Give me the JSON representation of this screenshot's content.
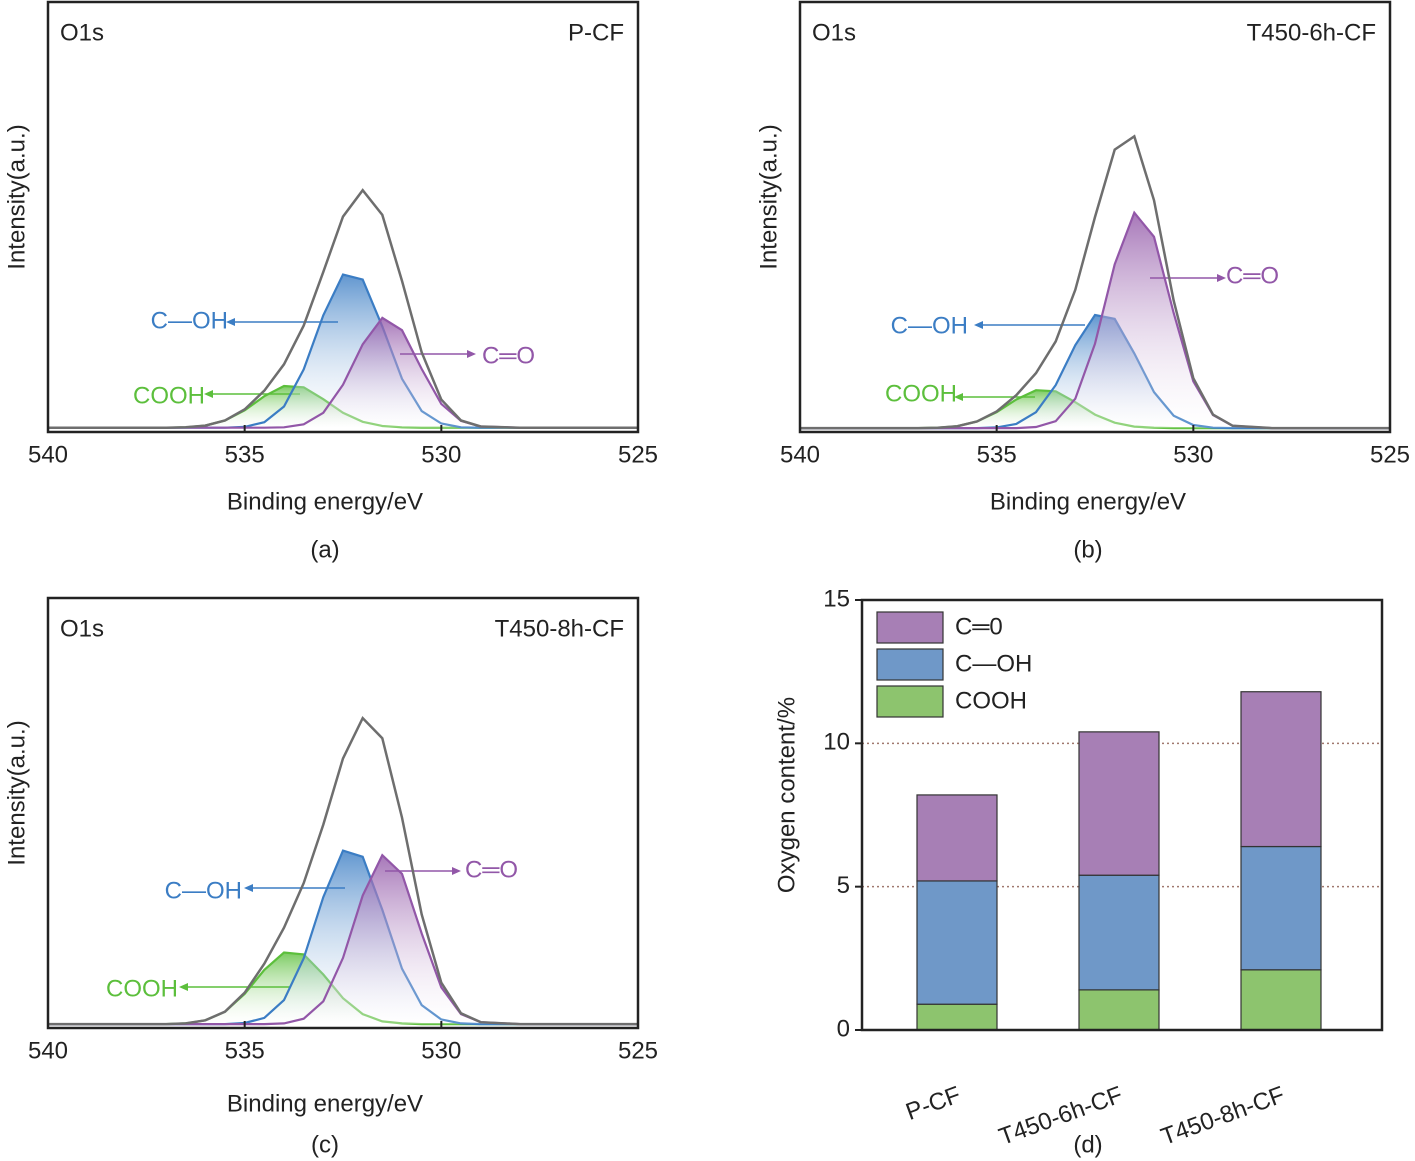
{
  "chart_data": [
    {
      "type": "line",
      "label": "O1s",
      "title": "P-CF",
      "caption": "(a)",
      "xlabel": "Binding energy/eV",
      "ylabel": "Intensity(a.u.)",
      "x": [
        540,
        538,
        537,
        536.5,
        536,
        535.5,
        535,
        534.5,
        534,
        533.5,
        533,
        532.5,
        532,
        531.5,
        531,
        530.5,
        530,
        529.5,
        529,
        528,
        525
      ],
      "xlim": [
        540,
        525
      ],
      "xticks": [
        540,
        535,
        530,
        525
      ],
      "ylim": [
        -1,
        100
      ],
      "series": [
        {
          "name": "COOH",
          "color": "#5cbf3c",
          "values": [
            0,
            0,
            0,
            0.1,
            0.5,
            1.7,
            4.1,
            7.4,
            9.8,
            9.5,
            6.7,
            3.5,
            1.4,
            0.4,
            0.1,
            0,
            0,
            0,
            0,
            0,
            0
          ]
        },
        {
          "name": "C—OH",
          "color": "#3b7dc4",
          "values": [
            0,
            0,
            0,
            0,
            0,
            0,
            0.2,
            1.3,
            5,
            13.7,
            26.4,
            36,
            34.8,
            23.8,
            11.5,
            3.9,
            1,
            0.1,
            0,
            0,
            0
          ]
        },
        {
          "name": "C═O",
          "color": "#9257a8",
          "values": [
            0,
            0,
            0,
            0,
            0,
            0,
            0,
            0,
            0.1,
            0.8,
            3.5,
            10.1,
            19.6,
            25.8,
            22.9,
            13.8,
            5.6,
            1.6,
            0.3,
            0,
            0
          ]
        }
      ],
      "envelope": {
        "color": "#6e6e6e",
        "values": [
          0,
          0,
          0,
          0.1,
          0.5,
          1.7,
          4.3,
          8.7,
          14.9,
          24,
          36.6,
          49.6,
          55.8,
          50,
          34.5,
          17.7,
          6.6,
          1.7,
          0.3,
          0,
          0
        ]
      }
    },
    {
      "type": "line",
      "label": "O1s",
      "title": "T450-6h-CF",
      "caption": "(b)",
      "xlabel": "Binding energy/eV",
      "ylabel": "Intensity(a.u.)",
      "x": [
        540,
        538,
        537,
        536.5,
        536,
        535.5,
        535,
        534.5,
        534,
        533.5,
        533,
        532.5,
        532,
        531.5,
        531,
        530.5,
        530,
        529.5,
        529,
        528,
        525
      ],
      "xlim": [
        540,
        525
      ],
      "xticks": [
        540,
        535,
        530,
        525
      ],
      "ylim": [
        -1,
        110
      ],
      "series": [
        {
          "name": "COOH",
          "color": "#5cbf3c",
          "values": [
            0,
            0,
            0,
            0.1,
            0.5,
            1.7,
            4.1,
            7.4,
            9.8,
            9.5,
            6.7,
            3.5,
            1.4,
            0.4,
            0.1,
            0,
            0,
            0,
            0,
            0,
            0
          ]
        },
        {
          "name": "C—OH",
          "color": "#3b7dc4",
          "values": [
            0,
            0,
            0,
            0,
            0,
            0,
            0.2,
            1.1,
            4.1,
            11.1,
            21.4,
            29.2,
            28.2,
            19.3,
            9.3,
            3.2,
            0.8,
            0.1,
            0,
            0,
            0
          ]
        },
        {
          "name": "C═O",
          "color": "#9257a8",
          "values": [
            0,
            0,
            0,
            0,
            0,
            0,
            0,
            0,
            0.3,
            1.8,
            7.6,
            21.8,
            42.3,
            55.6,
            49.4,
            29.7,
            12.1,
            3.4,
            0.6,
            0,
            0
          ]
        }
      ],
      "envelope": {
        "color": "#6e6e6e",
        "values": [
          0,
          0,
          0,
          0.1,
          0.5,
          1.7,
          4.3,
          8.5,
          14.2,
          22.4,
          35.7,
          54.5,
          71.9,
          75.3,
          58.8,
          32.9,
          12.9,
          3.5,
          0.6,
          0,
          0
        ]
      }
    },
    {
      "type": "line",
      "label": "O1s",
      "title": "T450-8h-CF",
      "caption": "(c)",
      "xlabel": "Binding energy/eV",
      "ylabel": "Intensity(a.u.)",
      "x": [
        540,
        538,
        537,
        536.5,
        536,
        535.5,
        535,
        534.5,
        534,
        533.5,
        533,
        532.5,
        532,
        531.5,
        531,
        530.5,
        530,
        529.5,
        529,
        528,
        525
      ],
      "xlim": [
        540,
        525
      ],
      "xticks": [
        540,
        535,
        530,
        525
      ],
      "ylim": [
        -1,
        110
      ],
      "series": [
        {
          "name": "COOH",
          "color": "#5cbf3c",
          "values": [
            0,
            0,
            0,
            0.2,
            1,
            3.2,
            7.8,
            14,
            18.5,
            18,
            12.8,
            6.7,
            2.6,
            0.7,
            0.2,
            0,
            0,
            0,
            0,
            0,
            0
          ]
        },
        {
          "name": "C—OH",
          "color": "#3b7dc4",
          "values": [
            0,
            0,
            0,
            0,
            0,
            0,
            0.3,
            1.6,
            6.2,
            17,
            32.8,
            44.8,
            43.2,
            29.5,
            14.3,
            4.9,
            1.2,
            0.2,
            0,
            0,
            0
          ]
        },
        {
          "name": "C═O",
          "color": "#9257a8",
          "values": [
            0,
            0,
            0,
            0,
            0,
            0,
            0,
            0,
            0.2,
            1.4,
            5.9,
            17.1,
            33.2,
            43.6,
            38.8,
            23.4,
            9.5,
            2.6,
            0.5,
            0,
            0
          ]
        }
      ],
      "envelope": {
        "color": "#6e6e6e",
        "values": [
          0,
          0,
          0,
          0.2,
          1,
          3.2,
          8.1,
          15.6,
          24.9,
          36.4,
          51.5,
          68.6,
          79,
          73.8,
          53.3,
          28.3,
          10.7,
          2.8,
          0.5,
          0,
          0
        ]
      }
    },
    {
      "type": "bar",
      "stacked": true,
      "caption": "(d)",
      "ylabel": "Oxygen content/%",
      "categories": [
        "P-CF",
        "T450-6h-CF",
        "T450-8h-CF"
      ],
      "series": [
        {
          "name": "COOH",
          "color": "#8dc46e",
          "values": [
            0.9,
            1.4,
            2.1
          ]
        },
        {
          "name": "C—OH",
          "color": "#6f98c8",
          "values": [
            4.3,
            4.0,
            4.3
          ]
        },
        {
          "name": "C═0",
          "color": "#a77fb5",
          "values": [
            3.0,
            5.0,
            5.4
          ]
        }
      ],
      "ylim": [
        0,
        15
      ],
      "yticks": [
        0,
        5,
        10,
        15
      ],
      "grid": true,
      "grid_color": "#a0786e",
      "legend": "upper left"
    }
  ]
}
